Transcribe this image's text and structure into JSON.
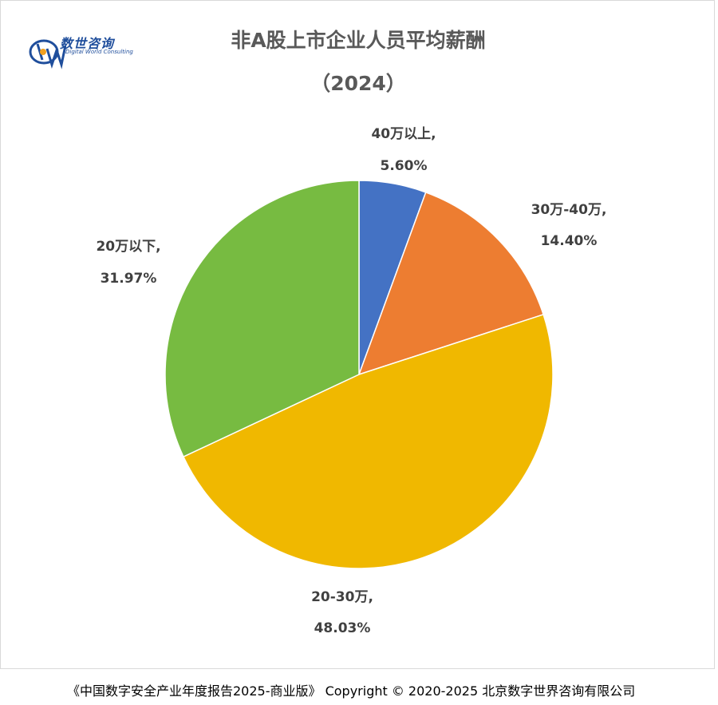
{
  "header": {
    "title": "非A股上市企业人员平均薪酬",
    "subtitle": "（2024）"
  },
  "logo": {
    "cn_text": "数世咨询",
    "en_text": "Digital World Consulting"
  },
  "footer": {
    "text": "《中国数字安全产业年度报告2025-商业版》 Copyright © 2020-2025 北京数字世界咨询有限公司"
  },
  "chart_data": {
    "type": "pie",
    "title": "非A股上市企业人员平均薪酬",
    "subtitle": "（2024）",
    "slices": [
      {
        "label": "40万以上,",
        "value": 5.6,
        "value_text": "5.60%",
        "color": "#4472c4"
      },
      {
        "label": "30万-40万,",
        "value": 14.4,
        "value_text": "14.40%",
        "color": "#ed7d31"
      },
      {
        "label": "20-30万,",
        "value": 48.03,
        "value_text": "48.03%",
        "color": "#f0b800"
      },
      {
        "label": "20万以下,",
        "value": 31.97,
        "value_text": "31.97%",
        "color": "#77bb41"
      }
    ],
    "start_angle_deg": 0,
    "direction": "clockwise"
  }
}
